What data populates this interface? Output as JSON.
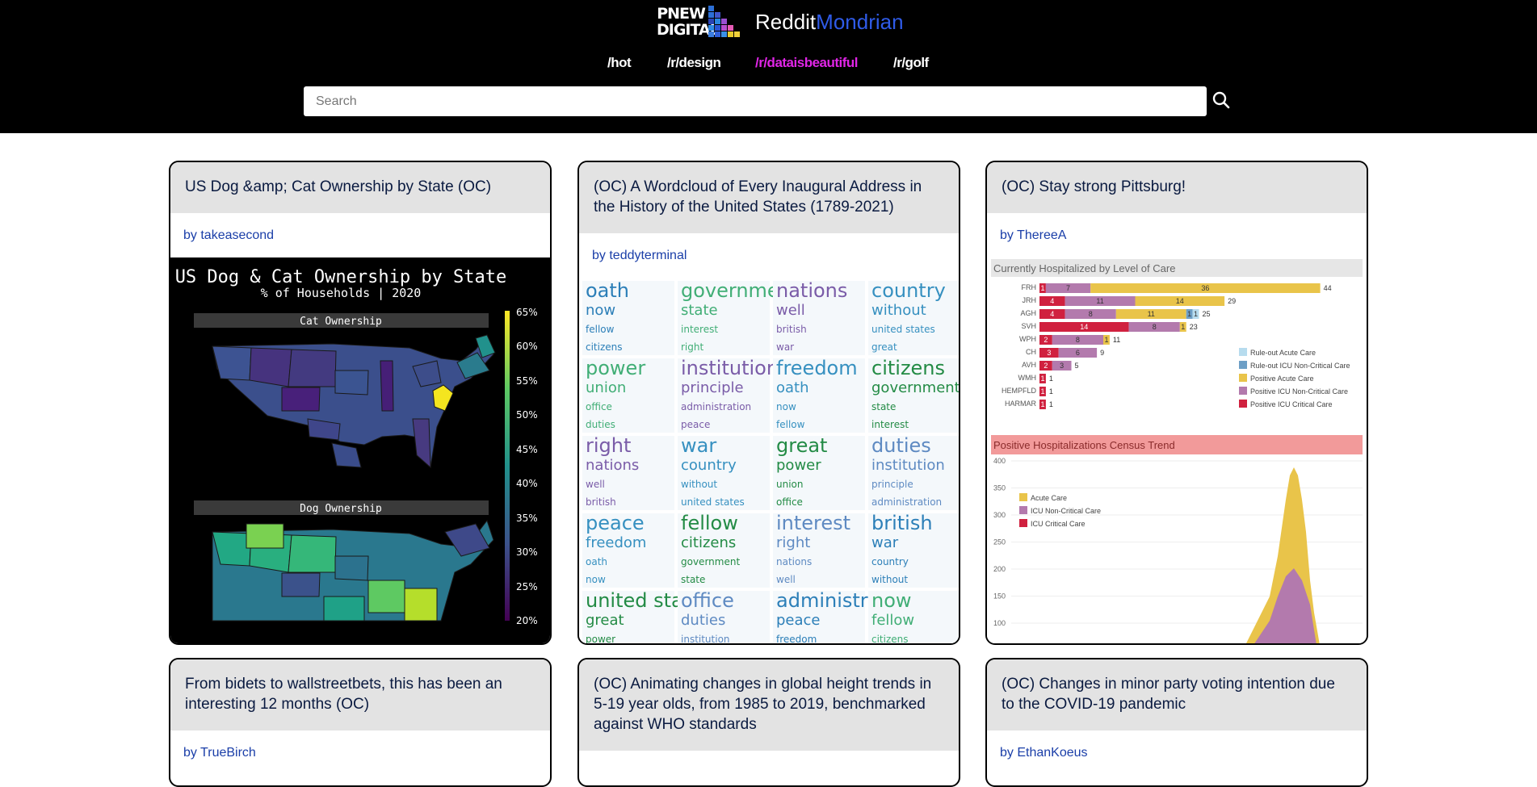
{
  "header": {
    "logo_line1": "PNEW",
    "logo_line2": "DIGITAL",
    "site_title_main": "Reddit",
    "site_title_accent": "Mondrian"
  },
  "nav": [
    {
      "label": "/hot",
      "active": false
    },
    {
      "label": "/r/design",
      "active": false
    },
    {
      "label": "/r/dataisbeautiful",
      "active": true
    },
    {
      "label": "/r/golf",
      "active": false
    }
  ],
  "search": {
    "placeholder": "Search"
  },
  "cards": [
    {
      "title": "US Dog &amp; Cat Ownership by State (OC)",
      "author": "by takeasecond"
    },
    {
      "title": "(OC) A Wordcloud of Every Inaugural Address in the History of the United States (1789-2021)",
      "author": "by teddyterminal"
    },
    {
      "title": "(OC) Stay strong Pittsburg!",
      "author": "by ThereeA"
    },
    {
      "title": "From bidets to wallstreetbets, this has been an interesting 12 months (OC)",
      "author": "by TrueBirch"
    },
    {
      "title": "(OC) Animating changes in global height trends in 5-19 year olds, from 1985 to 2019, benchmarked against WHO standards",
      "author": ""
    },
    {
      "title": "(OC) Changes in minor party voting intention due to the COVID-19 pandemic",
      "author": "by EthanKoeus"
    }
  ],
  "map_chart": {
    "title": "US Dog & Cat Ownership by State",
    "subtitle": "% of Households | 2020",
    "panel1": "Cat Ownership",
    "panel2": "Dog Ownership",
    "scale": [
      "65%",
      "60%",
      "55%",
      "50%",
      "45%",
      "40%",
      "35%",
      "30%",
      "25%",
      "20%"
    ]
  },
  "wordcloud": {
    "words": [
      "oath",
      "now",
      "fellow",
      "citizens",
      "government",
      "state",
      "interest",
      "right",
      "nations",
      "well",
      "british",
      "war",
      "country",
      "without",
      "united states",
      "great",
      "power",
      "union",
      "office",
      "duties",
      "institution",
      "principle",
      "administration",
      "peace",
      "freedom"
    ]
  },
  "hosp_chart": {
    "title1": "Currently Hospitalized by Level of Care",
    "rows": [
      {
        "label": "FRH",
        "vals": [
          1,
          7,
          36
        ],
        "total": "44"
      },
      {
        "label": "JRH",
        "vals": [
          4,
          11,
          14
        ],
        "total": "29"
      },
      {
        "label": "AGH",
        "vals": [
          4,
          8,
          11,
          1,
          1
        ],
        "total": "25"
      },
      {
        "label": "SVH",
        "vals": [
          14,
          8,
          1
        ],
        "total": "23"
      },
      {
        "label": "WPH",
        "vals": [
          2,
          8,
          1
        ],
        "total": "11"
      },
      {
        "label": "CH",
        "vals": [
          3,
          6
        ],
        "total": "9"
      },
      {
        "label": "AVH",
        "vals": [
          2,
          3
        ],
        "total": "5"
      },
      {
        "label": "WMH",
        "vals": [
          1
        ],
        "total": "1"
      },
      {
        "label": "HEMPFLD",
        "vals": [
          1
        ],
        "total": "1"
      },
      {
        "label": "HARMAR",
        "vals": [
          1
        ],
        "total": "1"
      }
    ],
    "legend1": [
      "Rule-out Acute Care",
      "Rule-out ICU Non-Critical Care",
      "Positive Acute Care",
      "Positive ICU Non-Critical Care",
      "Positive ICU Critical Care"
    ],
    "title2": "Positive Hospitalizations Census Trend",
    "yticks": [
      "400",
      "350",
      "300",
      "250",
      "200",
      "150",
      "100"
    ],
    "legend2": [
      "Acute Care",
      "ICU Non-Critical Care",
      "ICU Critical Care"
    ],
    "colors": {
      "crit": "#d0213f",
      "icu": "#b37aad",
      "acute": "#e9c44a",
      "ro_acute": "#b7dcee",
      "ro_icu": "#6d9fc6"
    }
  }
}
